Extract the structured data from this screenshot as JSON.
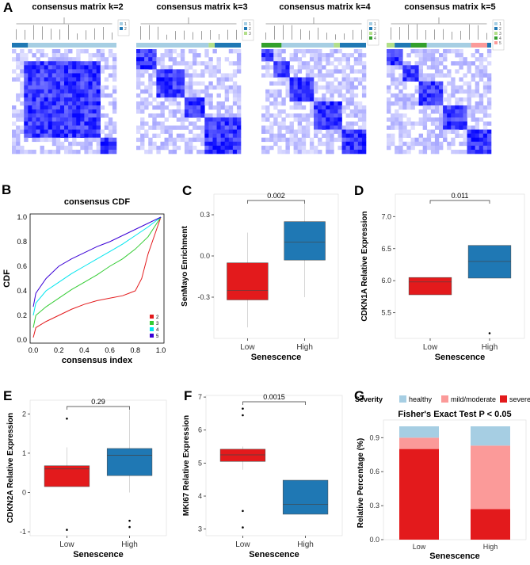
{
  "panels": {
    "A": "A",
    "B": "B",
    "C": "C",
    "D": "D",
    "E": "E",
    "F": "F",
    "G": "G"
  },
  "colors": {
    "low": "#e31a1c",
    "high": "#1f78b4",
    "cm_blue": "#0000ff",
    "cls1": "#a6cee3",
    "cls2": "#1f78b4",
    "cls3": "#b2df8a",
    "cls4": "#33a02c",
    "cls5": "#fb9a99",
    "healthy": "#a6cee3",
    "mild": "#fb9a99",
    "severe": "#e31a1c",
    "cdf2": "#e31a1c",
    "cdf3": "#33cc33",
    "cdf4": "#00e5ee",
    "cdf5": "#3a00d6"
  },
  "chart_data": [
    {
      "type": "heatmap",
      "id": "A",
      "titles": [
        "consensus matrix k=2",
        "consensus matrix k=3",
        "consensus matrix k=4",
        "consensus matrix k=5"
      ],
      "ks": [
        2,
        3,
        4,
        5
      ]
    },
    {
      "type": "line",
      "id": "B",
      "title": "consensus CDF",
      "xlabel": "consensus index",
      "ylabel": "CDF",
      "xlim": [
        0,
        1
      ],
      "ylim": [
        0,
        1
      ],
      "ticks": [
        "0.0",
        "0.2",
        "0.4",
        "0.6",
        "0.8",
        "1.0"
      ],
      "series": [
        {
          "name": "2",
          "x": [
            0,
            0.02,
            0.1,
            0.2,
            0.3,
            0.4,
            0.5,
            0.6,
            0.7,
            0.75,
            0.8,
            0.85,
            0.9,
            0.95,
            1.0
          ],
          "y": [
            0.02,
            0.1,
            0.15,
            0.2,
            0.25,
            0.29,
            0.32,
            0.34,
            0.36,
            0.38,
            0.4,
            0.5,
            0.7,
            0.85,
            1.0
          ]
        },
        {
          "name": "3",
          "x": [
            0,
            0.02,
            0.1,
            0.2,
            0.3,
            0.4,
            0.5,
            0.6,
            0.7,
            0.8,
            0.9,
            1.0
          ],
          "y": [
            0.1,
            0.2,
            0.27,
            0.34,
            0.41,
            0.47,
            0.53,
            0.6,
            0.66,
            0.74,
            0.84,
            1.0
          ]
        },
        {
          "name": "4",
          "x": [
            0,
            0.02,
            0.1,
            0.2,
            0.3,
            0.4,
            0.5,
            0.6,
            0.7,
            0.8,
            0.9,
            1.0
          ],
          "y": [
            0.2,
            0.3,
            0.4,
            0.47,
            0.54,
            0.6,
            0.66,
            0.72,
            0.78,
            0.85,
            0.92,
            1.0
          ]
        },
        {
          "name": "5",
          "x": [
            0,
            0.02,
            0.1,
            0.2,
            0.3,
            0.4,
            0.5,
            0.6,
            0.7,
            0.8,
            0.9,
            1.0
          ],
          "y": [
            0.27,
            0.38,
            0.5,
            0.6,
            0.66,
            0.71,
            0.76,
            0.8,
            0.85,
            0.9,
            0.95,
            1.0
          ]
        }
      ]
    },
    {
      "type": "box",
      "id": "C",
      "ylabel": "SenMayo Enrichment",
      "xlabel": "Senescence",
      "categories": [
        "Low",
        "High"
      ],
      "ylim": [
        -0.6,
        0.45
      ],
      "yticks": [
        -0.3,
        0.0,
        0.3
      ],
      "yticklabels": [
        "-0.3",
        "0.0",
        "0.3"
      ],
      "pvalue": "0.002",
      "boxes": [
        {
          "q1": -0.32,
          "median": -0.25,
          "q3": -0.05,
          "lo": -0.52,
          "hi": 0.17,
          "out": []
        },
        {
          "q1": -0.03,
          "median": 0.1,
          "q3": 0.25,
          "lo": -0.3,
          "hi": 0.38,
          "out": []
        }
      ]
    },
    {
      "type": "box",
      "id": "D",
      "ylabel": "CDKN1A Relative Expression",
      "xlabel": "Senescence",
      "categories": [
        "Low",
        "High"
      ],
      "ylim": [
        5.1,
        7.35
      ],
      "yticks": [
        5.5,
        6.0,
        6.5,
        7.0
      ],
      "yticklabels": [
        "5.5",
        "6.0",
        "6.5",
        "7.0"
      ],
      "pvalue": "0.011",
      "boxes": [
        {
          "q1": 5.78,
          "median": 5.98,
          "q3": 6.05,
          "lo": 5.78,
          "hi": 6.05,
          "out": []
        },
        {
          "q1": 6.04,
          "median": 6.3,
          "q3": 6.55,
          "lo": 6.04,
          "hi": 6.55,
          "out": [
            5.18
          ]
        }
      ]
    },
    {
      "type": "box",
      "id": "E",
      "ylabel": "CDKN2A Relative Expression",
      "xlabel": "Senescence",
      "categories": [
        "Low",
        "High"
      ],
      "ylim": [
        -1.1,
        2.35
      ],
      "yticks": [
        -1,
        0,
        1,
        2
      ],
      "yticklabels": [
        "-1",
        "0",
        "1",
        "2"
      ],
      "pvalue": "0.29",
      "boxes": [
        {
          "q1": 0.15,
          "median": 0.6,
          "q3": 0.68,
          "lo": 0.15,
          "hi": 1.15,
          "out": [
            1.88,
            -0.95
          ]
        },
        {
          "q1": 0.43,
          "median": 0.95,
          "q3": 1.12,
          "lo": 0.0,
          "hi": 2.1,
          "out": [
            -0.72,
            -0.88
          ]
        }
      ]
    },
    {
      "type": "box",
      "id": "F",
      "ylabel": "MKI67 Relative Expression",
      "xlabel": "Senescence",
      "categories": [
        "Low",
        "High"
      ],
      "ylim": [
        2.8,
        7.05
      ],
      "yticks": [
        3,
        4,
        5,
        6,
        7
      ],
      "yticklabels": [
        "3",
        "4",
        "5",
        "6",
        "7"
      ],
      "pvalue": "0.0015",
      "boxes": [
        {
          "q1": 5.05,
          "median": 5.25,
          "q3": 5.42,
          "lo": 4.8,
          "hi": 5.5,
          "out": [
            6.65,
            6.45,
            3.55,
            3.05
          ]
        },
        {
          "q1": 3.45,
          "median": 3.75,
          "q3": 4.48,
          "lo": 3.45,
          "hi": 4.48,
          "out": []
        }
      ]
    },
    {
      "type": "bar",
      "id": "G",
      "title": "Fisher's Exact Test P < 0.05",
      "legend_title": "Severity",
      "legend": [
        "healthy",
        "mild/moderate",
        "severe"
      ],
      "ylabel": "Relative Percentage (%)",
      "xlabel": "Senescence",
      "categories": [
        "Low",
        "High"
      ],
      "yticks": [
        0.0,
        0.3,
        0.6,
        0.9
      ],
      "yticklabels": [
        "0.0",
        "0.3",
        "0.6",
        "0.9"
      ],
      "series": [
        {
          "name": "severe",
          "values": [
            0.8,
            0.27
          ]
        },
        {
          "name": "mild/moderate",
          "values": [
            0.1,
            0.56
          ]
        },
        {
          "name": "healthy",
          "values": [
            0.1,
            0.17
          ]
        }
      ]
    }
  ]
}
